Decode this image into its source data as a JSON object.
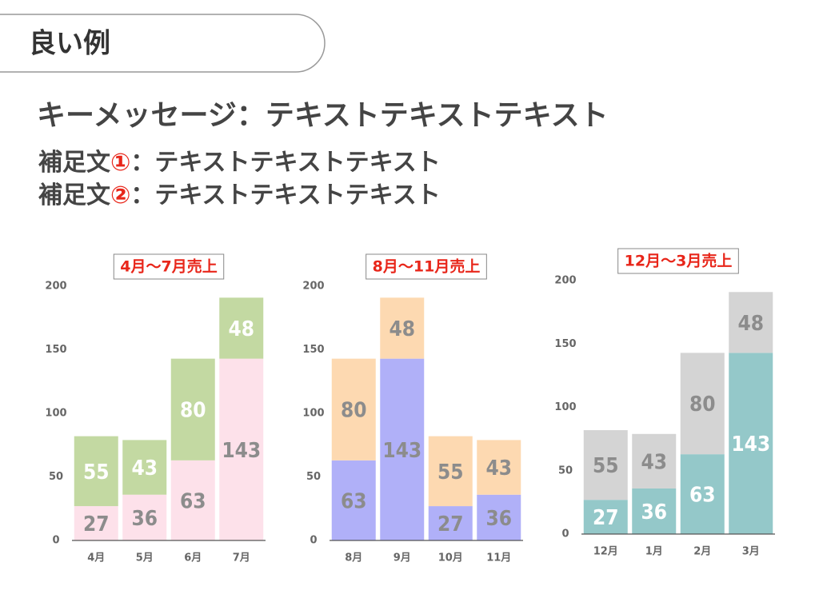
{
  "header": {
    "badge": "良い例",
    "key_message": "キーメッセージ：テキストテキストテキスト",
    "sub1": [
      "補足文",
      "①",
      "：テキストテキストテキスト"
    ],
    "sub2": [
      "補足文",
      "②",
      "：テキストテキストテキスト"
    ]
  },
  "chart_data": [
    {
      "type": "bar",
      "stacked": true,
      "title": "4月〜7月売上",
      "categories": [
        "4月",
        "5月",
        "6月",
        "7月"
      ],
      "series": [
        {
          "color": "#fde1ea",
          "label_color": "#8c8c8c",
          "values": [
            27,
            36,
            63,
            143
          ]
        },
        {
          "color": "#c3d9a2",
          "label_color": "#ffffff",
          "values": [
            55,
            43,
            80,
            48
          ]
        }
      ],
      "ylim": [
        0,
        200
      ],
      "yticks": [
        0,
        50,
        100,
        150,
        200
      ],
      "grid": false
    },
    {
      "type": "bar",
      "stacked": true,
      "title": "8月〜11月売上",
      "categories": [
        "8月",
        "9月",
        "10月",
        "11月"
      ],
      "series": [
        {
          "color": "#b0b0f8",
          "label_color": "#8c8c8c",
          "values": [
            63,
            143,
            27,
            36
          ]
        },
        {
          "color": "#fdd9b1",
          "label_color": "#8c8c8c",
          "values": [
            80,
            48,
            55,
            43
          ]
        }
      ],
      "ylim": [
        0,
        200
      ],
      "yticks": [
        0,
        50,
        100,
        150,
        200
      ],
      "grid": false
    },
    {
      "type": "bar",
      "stacked": true,
      "title": "12月〜3月売上",
      "categories": [
        "12月",
        "1月",
        "2月",
        "3月"
      ],
      "series": [
        {
          "color": "#94c8c9",
          "label_color": "#ffffff",
          "values": [
            27,
            36,
            63,
            143
          ]
        },
        {
          "color": "#d4d4d4",
          "label_color": "#8c8c8c",
          "values": [
            55,
            43,
            80,
            48
          ]
        }
      ],
      "ylim": [
        0,
        200
      ],
      "yticks": [
        0,
        50,
        100,
        150,
        200
      ],
      "grid": false
    }
  ]
}
